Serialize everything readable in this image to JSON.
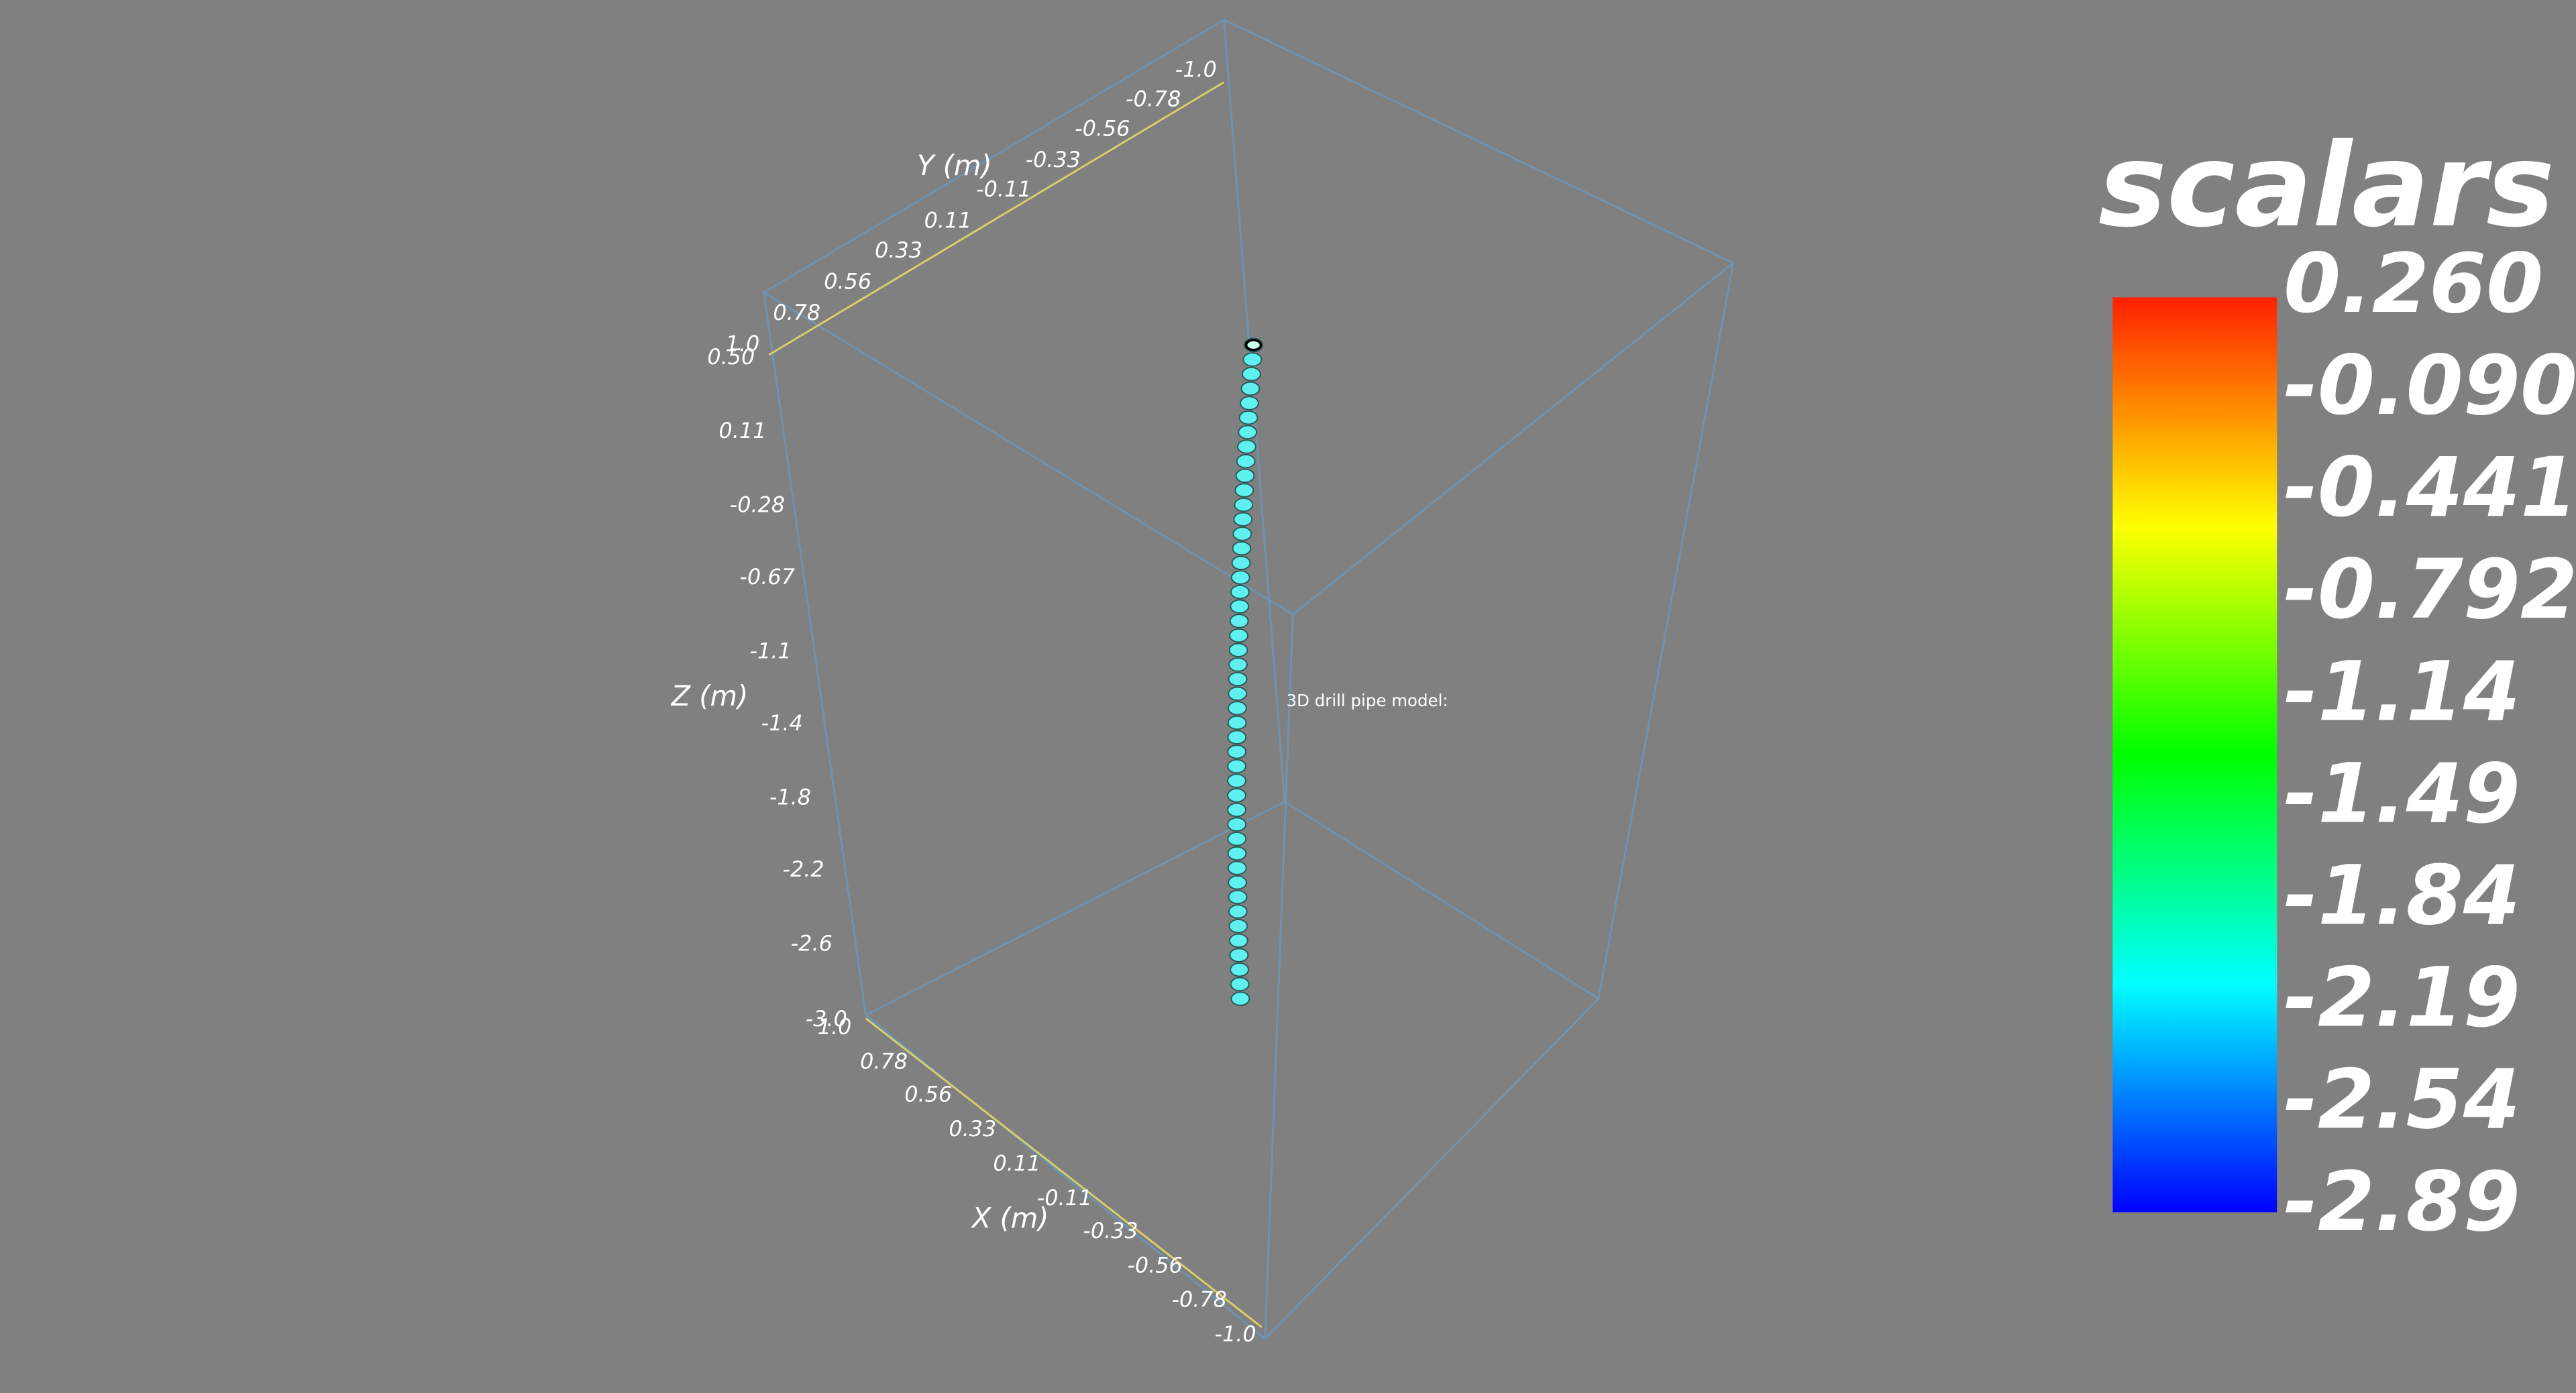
{
  "annotation": "3D drill pipe model:",
  "axes": {
    "x": {
      "title": "X (m)",
      "ticks": [
        "1.0",
        "0.78",
        "0.56",
        "0.33",
        "0.11",
        "-0.11",
        "-0.33",
        "-0.56",
        "-0.78",
        "-1.0"
      ]
    },
    "y": {
      "title": "Y (m)",
      "ticks": [
        "-1.0",
        "-0.78",
        "-0.56",
        "-0.33",
        "-0.11",
        "0.11",
        "0.33",
        "0.56",
        "0.78",
        "1.0"
      ]
    },
    "z": {
      "title": "Z (m)",
      "ticks": [
        "0.50",
        "0.11",
        "-0.28",
        "-0.67",
        "-1.1",
        "-1.4",
        "-1.8",
        "-2.2",
        "-2.6",
        "-3.0"
      ]
    }
  },
  "colorbar": {
    "title": "scalars",
    "labels": [
      "0.260",
      "-0.0905",
      "-0.441",
      "-0.792",
      "-1.14",
      "-1.49",
      "-1.84",
      "-2.19",
      "-2.54",
      "-2.89"
    ]
  }
}
